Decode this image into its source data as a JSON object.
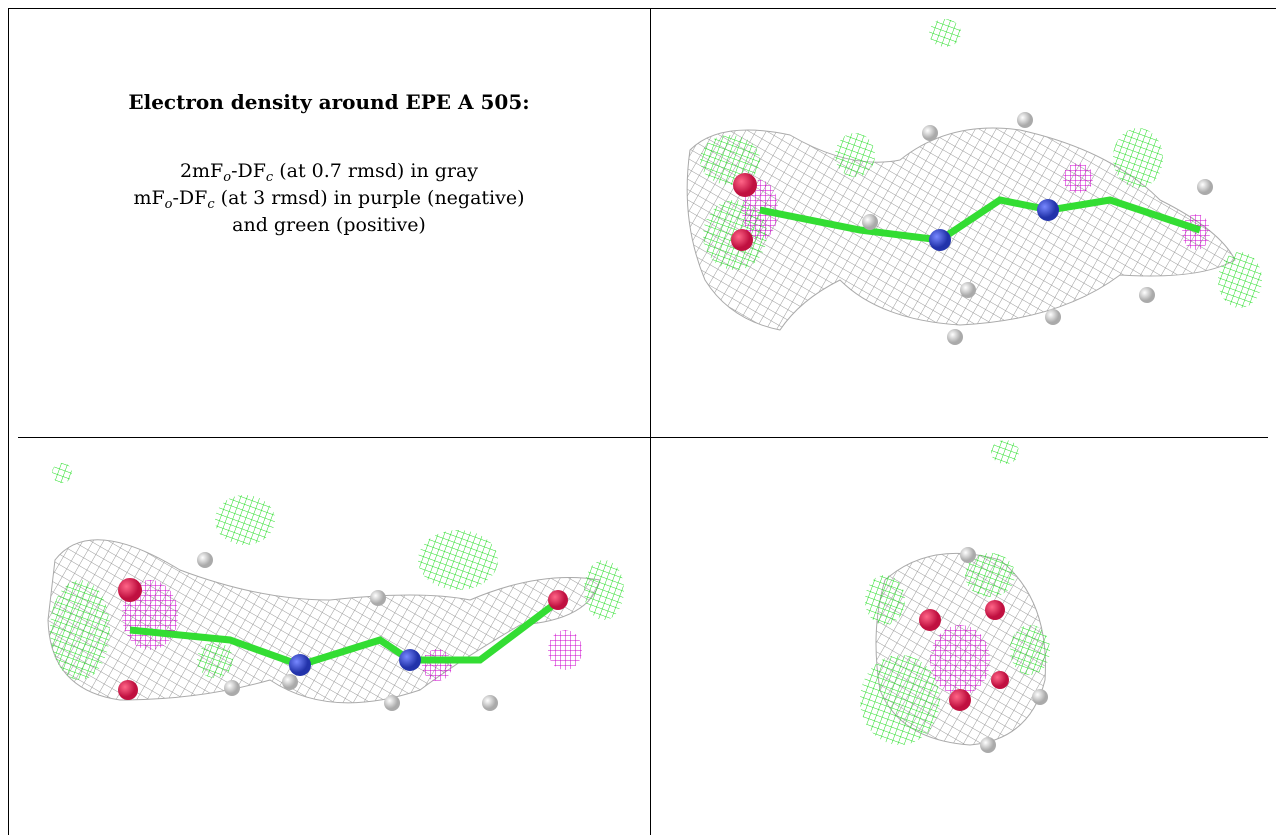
{
  "caption": {
    "title": "Electron density around EPE A 505:",
    "lines": [
      [
        "2mF",
        "o",
        "-DF",
        "c",
        " (at 0.7 rmsd) in gray"
      ],
      [
        "mF",
        "o",
        "-DF",
        "c",
        " (at 3 rmsd) in purple (negative)"
      ],
      [
        "and green (positive)"
      ]
    ]
  }
}
